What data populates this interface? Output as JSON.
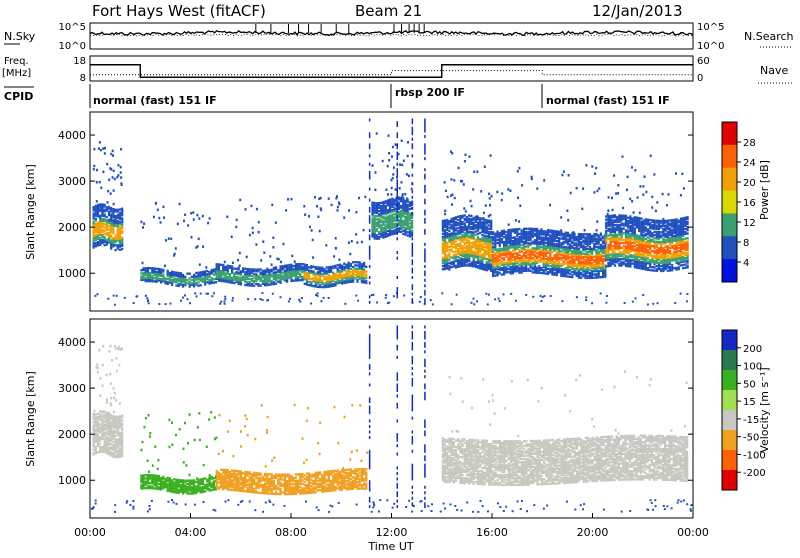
{
  "header": {
    "title": "Fort Hays West (fitACF)",
    "beam": "Beam 21",
    "date": "12/Jan/2013"
  },
  "panels": {
    "noise": {
      "left_label": "N.Sky",
      "right_label": "N.Search",
      "left_ticks": [
        "10^5",
        "10^0"
      ],
      "right_ticks": [
        "10^5",
        "10^0"
      ]
    },
    "freq": {
      "left_label_line1": "Freq.",
      "left_label_line2": "[MHz]",
      "right_label": "Nave",
      "left_ticks": [
        "18",
        "8"
      ],
      "right_ticks": [
        "60",
        "0"
      ]
    },
    "cpid": {
      "label": "CPID",
      "modes": [
        {
          "name": "normal (fast) 151 IF",
          "start": 0
        },
        {
          "name": "rbsp 200 IF",
          "start": 12
        },
        {
          "name": "normal (fast) 151 IF",
          "start": 18
        }
      ]
    }
  },
  "power_panel": {
    "ylabel": "Slant Range [km]",
    "colorbar_label": "Power [dB]",
    "colorbar_ticks": [
      "28",
      "24",
      "20",
      "16",
      "12",
      "8",
      "4"
    ],
    "colors": [
      "#e00000",
      "#ff6000",
      "#f0a000",
      "#d8d800",
      "#3aa070",
      "#2050c0",
      "#0010e0"
    ]
  },
  "velocity_panel": {
    "ylabel": "Slant Range [km]",
    "colorbar_label": "Velocity [m s⁻¹]",
    "colorbar_ticks": [
      "200",
      "100",
      "50",
      "15",
      "-15",
      "-50",
      "-100",
      "-200"
    ],
    "colors": [
      "#1428c8",
      "#2a7a50",
      "#39b020",
      "#a0e050",
      "#c8c8c0",
      "#f0a020",
      "#ff6000",
      "#e00000"
    ]
  },
  "xaxis": {
    "label": "Time UT",
    "ticks": [
      "00:00",
      "04:00",
      "08:00",
      "12:00",
      "16:00",
      "20:00",
      "00:00"
    ]
  },
  "chart_data": {
    "type": "heatmap",
    "title": "Fort Hays West (fitACF)",
    "subtitle": "Beam 21",
    "date": "12/Jan/2013",
    "xlabel": "Time UT",
    "ylabel": "Slant Range [km]",
    "xlim": [
      "00:00",
      "24:00"
    ],
    "ylim": [
      180,
      4500
    ],
    "yticks": [
      1000,
      2000,
      3000,
      4000
    ],
    "freq_steps": [
      {
        "start": 0,
        "end": 2,
        "freq": 14.5
      },
      {
        "start": 2,
        "end": 12,
        "freq": 9.5
      },
      {
        "start": 12,
        "end": 14,
        "freq": 9.5
      },
      {
        "start": 14,
        "end": 24,
        "freq": 14.5
      }
    ],
    "nave_steps": [
      {
        "start": 0,
        "end": 12,
        "nave": 15
      },
      {
        "start": 12,
        "end": 18,
        "nave": 25
      },
      {
        "start": 18,
        "end": 24,
        "nave": 15
      }
    ],
    "power_bands": [
      {
        "start": 0.1,
        "end": 1.3,
        "range_low": 1550,
        "range_high": 2450,
        "level": 3
      },
      {
        "start": 2.0,
        "end": 5.0,
        "range_low": 760,
        "range_high": 1050,
        "level": 1
      },
      {
        "start": 5.0,
        "end": 8.5,
        "range_low": 780,
        "range_high": 1150,
        "level": 2
      },
      {
        "start": 8.5,
        "end": 11.0,
        "range_low": 750,
        "range_high": 1200,
        "level": 3
      },
      {
        "start": 11.2,
        "end": 12.8,
        "range_low": 1800,
        "range_high": 2600,
        "level": 1
      },
      {
        "start": 14.0,
        "end": 16.0,
        "range_low": 1100,
        "range_high": 2200,
        "level": 3
      },
      {
        "start": 16.0,
        "end": 20.5,
        "range_low": 950,
        "range_high": 1900,
        "level": 4
      },
      {
        "start": 20.5,
        "end": 23.8,
        "range_low": 1100,
        "range_high": 2200,
        "level": 4
      }
    ],
    "velocity_bands": [
      {
        "start": 0.1,
        "end": 1.3,
        "range_low": 1550,
        "range_high": 2450,
        "class": "-15..15"
      },
      {
        "start": 2.0,
        "end": 5.0,
        "range_low": 760,
        "range_high": 1050,
        "class": "15..50"
      },
      {
        "start": 5.0,
        "end": 11.0,
        "range_low": 750,
        "range_high": 1200,
        "class": "-50..-15"
      },
      {
        "start": 14.0,
        "end": 23.8,
        "range_low": 950,
        "range_high": 1900,
        "class": "-15..15"
      }
    ]
  }
}
